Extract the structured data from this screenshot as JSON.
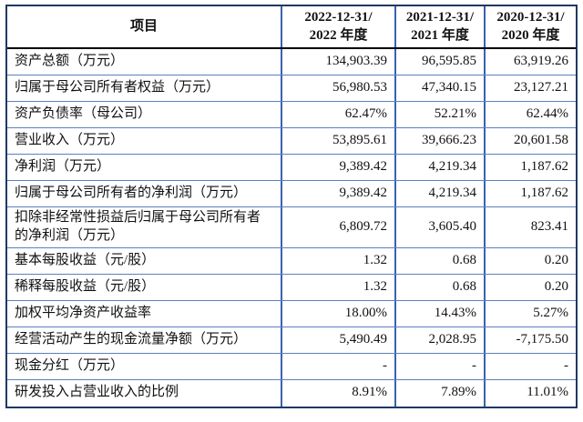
{
  "table": {
    "header": {
      "item": "项目",
      "col2022": {
        "line1": "2022-12-31/",
        "line2": "2022 年度"
      },
      "col2021": {
        "line1": "2021-12-31/",
        "line2": "2021 年度"
      },
      "col2020": {
        "line1": "2020-12-31/",
        "line2": "2020 年度"
      }
    },
    "rows": [
      {
        "label": "资产总额（万元）",
        "values": [
          "134,903.39",
          "96,595.85",
          "63,919.26"
        ]
      },
      {
        "label": "归属于母公司所有者权益（万元）",
        "values": [
          "56,980.53",
          "47,340.15",
          "23,127.21"
        ]
      },
      {
        "label": "资产负债率（母公司）",
        "values": [
          "62.47%",
          "52.21%",
          "62.44%"
        ]
      },
      {
        "label": "营业收入（万元）",
        "values": [
          "53,895.61",
          "39,666.23",
          "20,601.58"
        ]
      },
      {
        "label": "净利润（万元）",
        "values": [
          "9,389.42",
          "4,219.34",
          "1,187.62"
        ]
      },
      {
        "label": "归属于母公司所有者的净利润（万元）",
        "values": [
          "9,389.42",
          "4,219.34",
          "1,187.62"
        ]
      },
      {
        "label": "扣除非经常性损益后归属于母公司所有者的净利润（万元）",
        "values": [
          "6,809.72",
          "3,605.40",
          "823.41"
        ]
      },
      {
        "label": "基本每股收益（元/股）",
        "values": [
          "1.32",
          "0.68",
          "0.20"
        ]
      },
      {
        "label": "稀释每股收益（元/股）",
        "values": [
          "1.32",
          "0.68",
          "0.20"
        ]
      },
      {
        "label": "加权平均净资产收益率",
        "values": [
          "18.00%",
          "14.43%",
          "5.27%"
        ]
      },
      {
        "label": "经营活动产生的现金流量净额（万元）",
        "values": [
          "5,490.49",
          "2,028.95",
          "-7,175.50"
        ]
      },
      {
        "label": "现金分红（万元）",
        "values": [
          "-",
          "-",
          "-"
        ]
      },
      {
        "label": "研发投入占营业收入的比例",
        "values": [
          "8.91%",
          "7.89%",
          "11.01%"
        ]
      }
    ],
    "colors": {
      "outer_border": "#1F3864",
      "grid_vertical": "#3A62AD",
      "grid_horizontal": "#5B7FC0",
      "header_separator": "#000000",
      "text": "#111111",
      "background": "#FFFFFF"
    }
  }
}
